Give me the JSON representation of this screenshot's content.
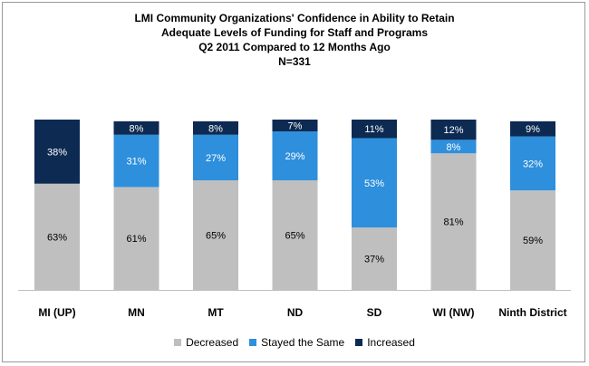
{
  "chart_data": {
    "type": "bar",
    "stacked": true,
    "title_lines": [
      "LMI Community Organizations'  Confidence  in Ability to Retain",
      "Adequate Levels of Funding for Staff and Programs",
      "Q2 2011 Compared to 12 Months Ago",
      "N=331"
    ],
    "categories": [
      "MI (UP)",
      "MN",
      "MT",
      "ND",
      "SD",
      "WI (NW)",
      "Ninth District"
    ],
    "series": [
      {
        "name": "Decreased",
        "color": "#bfbfbf",
        "values": [
          63,
          61,
          65,
          65,
          37,
          81,
          59
        ],
        "labels": [
          "63%",
          "61%",
          "65%",
          "65%",
          "37%",
          "81%",
          "59%"
        ]
      },
      {
        "name": "Stayed the Same",
        "color": "#2e8fdc",
        "values": [
          0,
          31,
          27,
          29,
          53,
          8,
          32
        ],
        "labels": [
          "",
          "31%",
          "27%",
          "29%",
          "53%",
          "8%",
          "32%"
        ]
      },
      {
        "name": "Increased",
        "color": "#0d2a52",
        "values": [
          38,
          8,
          8,
          7,
          11,
          12,
          9
        ],
        "labels": [
          "38%",
          "8%",
          "8%",
          "7%",
          "11%",
          "12%",
          "9%"
        ]
      }
    ],
    "ylim": [
      0,
      101
    ],
    "legend_position": "bottom",
    "grid": false
  }
}
